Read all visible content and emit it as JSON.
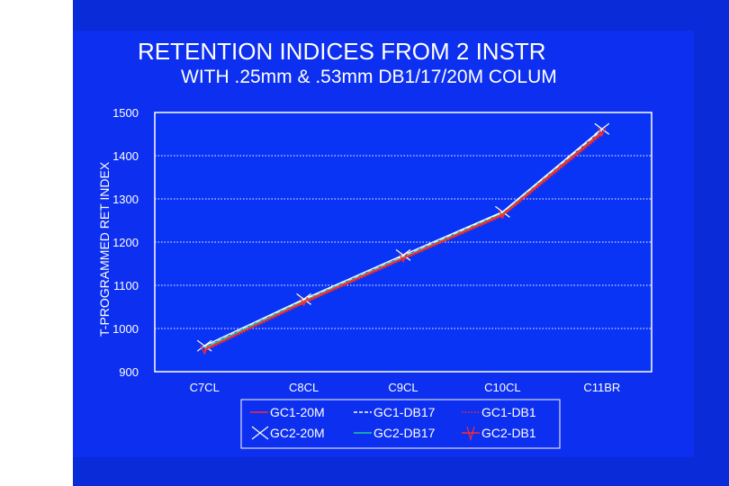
{
  "chart_data": {
    "type": "line",
    "title": "RETENTION INDICES FROM 2 INSTR",
    "subtitle": "WITH .25mm & .53mm DB1/17/20M COLUM",
    "ylabel": "T-PROGRAMMED RET INDEX",
    "xlabel": "",
    "categories": [
      "C7CL",
      "C8CL",
      "C9CL",
      "C10CL",
      "C11BR"
    ],
    "ylim": [
      900,
      1500
    ],
    "yticks": [
      1500,
      1400,
      1300,
      1200,
      1100,
      1000,
      900
    ],
    "grid": true,
    "legend_position": "bottom",
    "series": [
      {
        "name": "GC1-20M",
        "values": [
          952,
          1060,
          1162,
          1262,
          1452
        ],
        "color": "#ff2a2a",
        "style": "solid",
        "marker": "none"
      },
      {
        "name": "GC1-DB17",
        "values": [
          956,
          1065,
          1166,
          1268,
          1458
        ],
        "color": "#ffffff",
        "style": "dashed",
        "marker": "none"
      },
      {
        "name": "GC1-DB1",
        "values": [
          948,
          1058,
          1160,
          1260,
          1448
        ],
        "color": "#ff2a2a",
        "style": "dotted",
        "marker": "none"
      },
      {
        "name": "GC2-20M",
        "values": [
          960,
          1068,
          1170,
          1270,
          1462
        ],
        "color": "#ffffff",
        "style": "solid",
        "marker": "x"
      },
      {
        "name": "GC2-DB17",
        "values": [
          955,
          1064,
          1165,
          1266,
          1456
        ],
        "color": "#22cc99",
        "style": "solid",
        "marker": "none"
      },
      {
        "name": "GC2-DB1",
        "values": [
          950,
          1062,
          1163,
          1264,
          1455
        ],
        "color": "#ff2a2a",
        "style": "solid",
        "marker": "v"
      }
    ]
  },
  "colors": {
    "background": "#0a2bd8",
    "panel": "#0d2ff0",
    "plot_area": "#0a34f5",
    "text": "#ffffff",
    "grid": "#ffffff"
  }
}
